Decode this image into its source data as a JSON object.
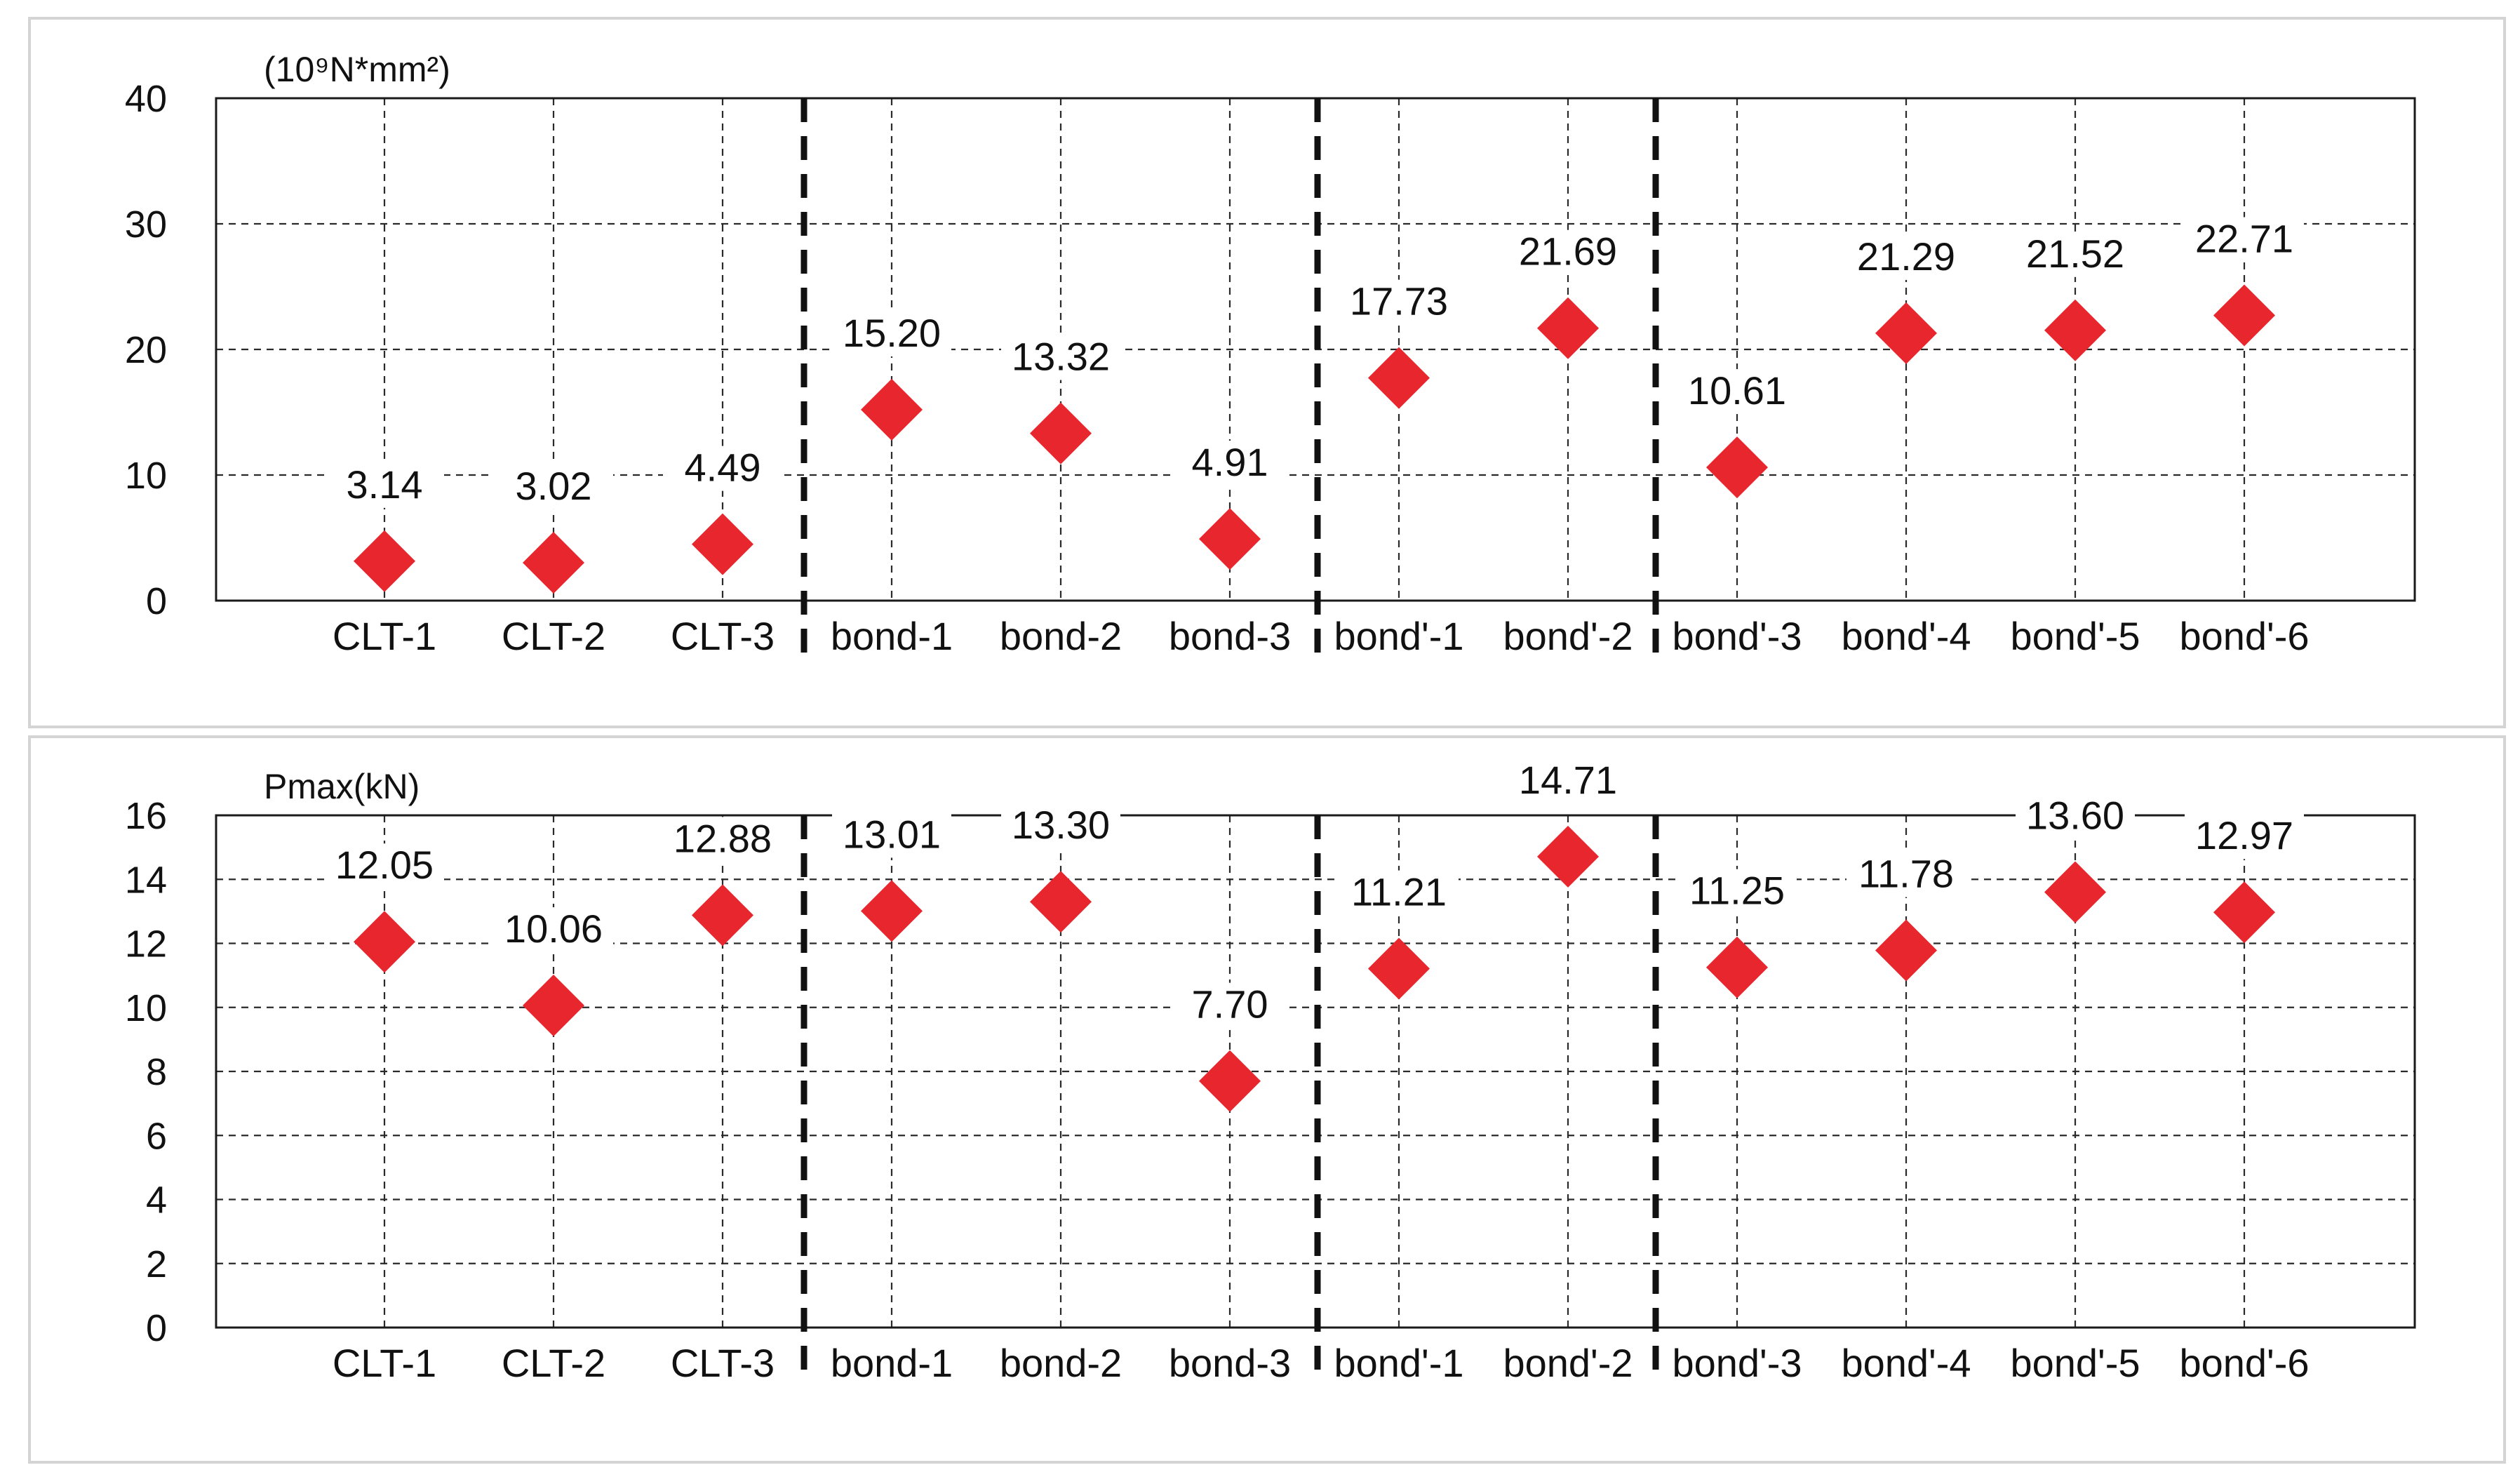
{
  "chart_data": [
    {
      "type": "scatter",
      "unit_label": "(10⁹N*mm²)",
      "categories": [
        "CLT-1",
        "CLT-2",
        "CLT-3",
        "bond-1",
        "bond-2",
        "bond-3",
        "bond'-1",
        "bond'-2",
        "bond'-3",
        "bond'-4",
        "bond'-5",
        "bond'-6"
      ],
      "values": [
        3.14,
        3.02,
        4.49,
        15.2,
        13.32,
        4.91,
        17.73,
        21.69,
        10.61,
        21.29,
        21.52,
        22.71
      ],
      "value_labels": [
        "3.14",
        "3.02",
        "4.49",
        "15.20",
        "13.32",
        "4.91",
        "17.73",
        "21.69",
        "10.61",
        "21.29",
        "21.52",
        "22.71"
      ],
      "ylim": [
        0,
        40
      ],
      "yticks": [
        "0",
        "10",
        "20",
        "30",
        "40"
      ],
      "group_separators_after": [
        3,
        6,
        8
      ],
      "grid": true,
      "marker": "diamond",
      "marker_color": "#e8262d"
    },
    {
      "type": "scatter",
      "unit_label": "Pmax(kN)",
      "categories": [
        "CLT-1",
        "CLT-2",
        "CLT-3",
        "bond-1",
        "bond-2",
        "bond-3",
        "bond'-1",
        "bond'-2",
        "bond'-3",
        "bond'-4",
        "bond'-5",
        "bond'-6"
      ],
      "values": [
        12.05,
        10.06,
        12.88,
        13.01,
        13.3,
        7.7,
        11.21,
        14.71,
        11.25,
        11.78,
        13.6,
        12.97
      ],
      "value_labels": [
        "12.05",
        "10.06",
        "12.88",
        "13.01",
        "13.30",
        "7.70",
        "11.21",
        "14.71",
        "11.25",
        "11.78",
        "13.60",
        "12.97"
      ],
      "ylim": [
        0,
        16
      ],
      "yticks": [
        "0",
        "2",
        "4",
        "6",
        "8",
        "10",
        "12",
        "14",
        "16"
      ],
      "group_separators_after": [
        3,
        6,
        8
      ],
      "grid": true,
      "marker": "diamond",
      "marker_color": "#e8262d"
    }
  ]
}
